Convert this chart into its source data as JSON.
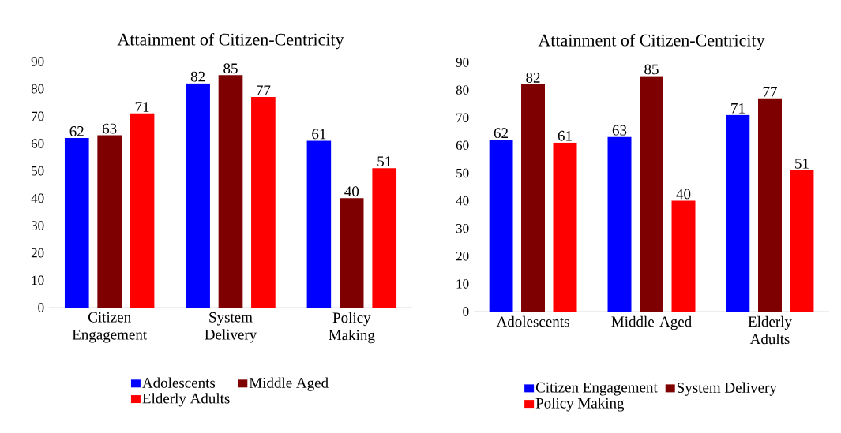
{
  "chart_data": [
    {
      "type": "bar",
      "title": "Attainment  of Citizen-Centricity",
      "categories": [
        "Citizen Engagement",
        "System Delivery",
        "Policy Making"
      ],
      "series": [
        {
          "name": "Adolescents",
          "color": "#0000ff",
          "values": [
            62,
            82,
            61
          ]
        },
        {
          "name": "Middle Aged",
          "color": "#7f0000",
          "values": [
            63,
            85,
            40
          ]
        },
        {
          "name": "Elderly Adults",
          "color": "#ff0000",
          "values": [
            71,
            77,
            51
          ]
        }
      ],
      "ylim": [
        0,
        90
      ],
      "yticks": [
        0,
        10,
        20,
        30,
        40,
        50,
        60,
        70,
        80,
        90
      ],
      "data_labels": true,
      "legend": "bottom",
      "grid": false
    },
    {
      "type": "bar",
      "title": "Attainment  of Citizen-Centricity",
      "categories": [
        "Adolescents",
        "Middle Aged",
        "Elderly Adults"
      ],
      "series": [
        {
          "name": "Citizen Engagement",
          "color": "#0000ff",
          "values": [
            62,
            63,
            71
          ]
        },
        {
          "name": "System Delivery",
          "color": "#7f0000",
          "values": [
            82,
            85,
            77
          ]
        },
        {
          "name": "Policy Making",
          "color": "#ff0000",
          "values": [
            61,
            40,
            51
          ]
        }
      ],
      "ylim": [
        0,
        90
      ],
      "yticks": [
        0,
        10,
        20,
        30,
        40,
        50,
        60,
        70,
        80,
        90
      ],
      "data_labels": true,
      "legend": "bottom",
      "grid": false
    }
  ]
}
